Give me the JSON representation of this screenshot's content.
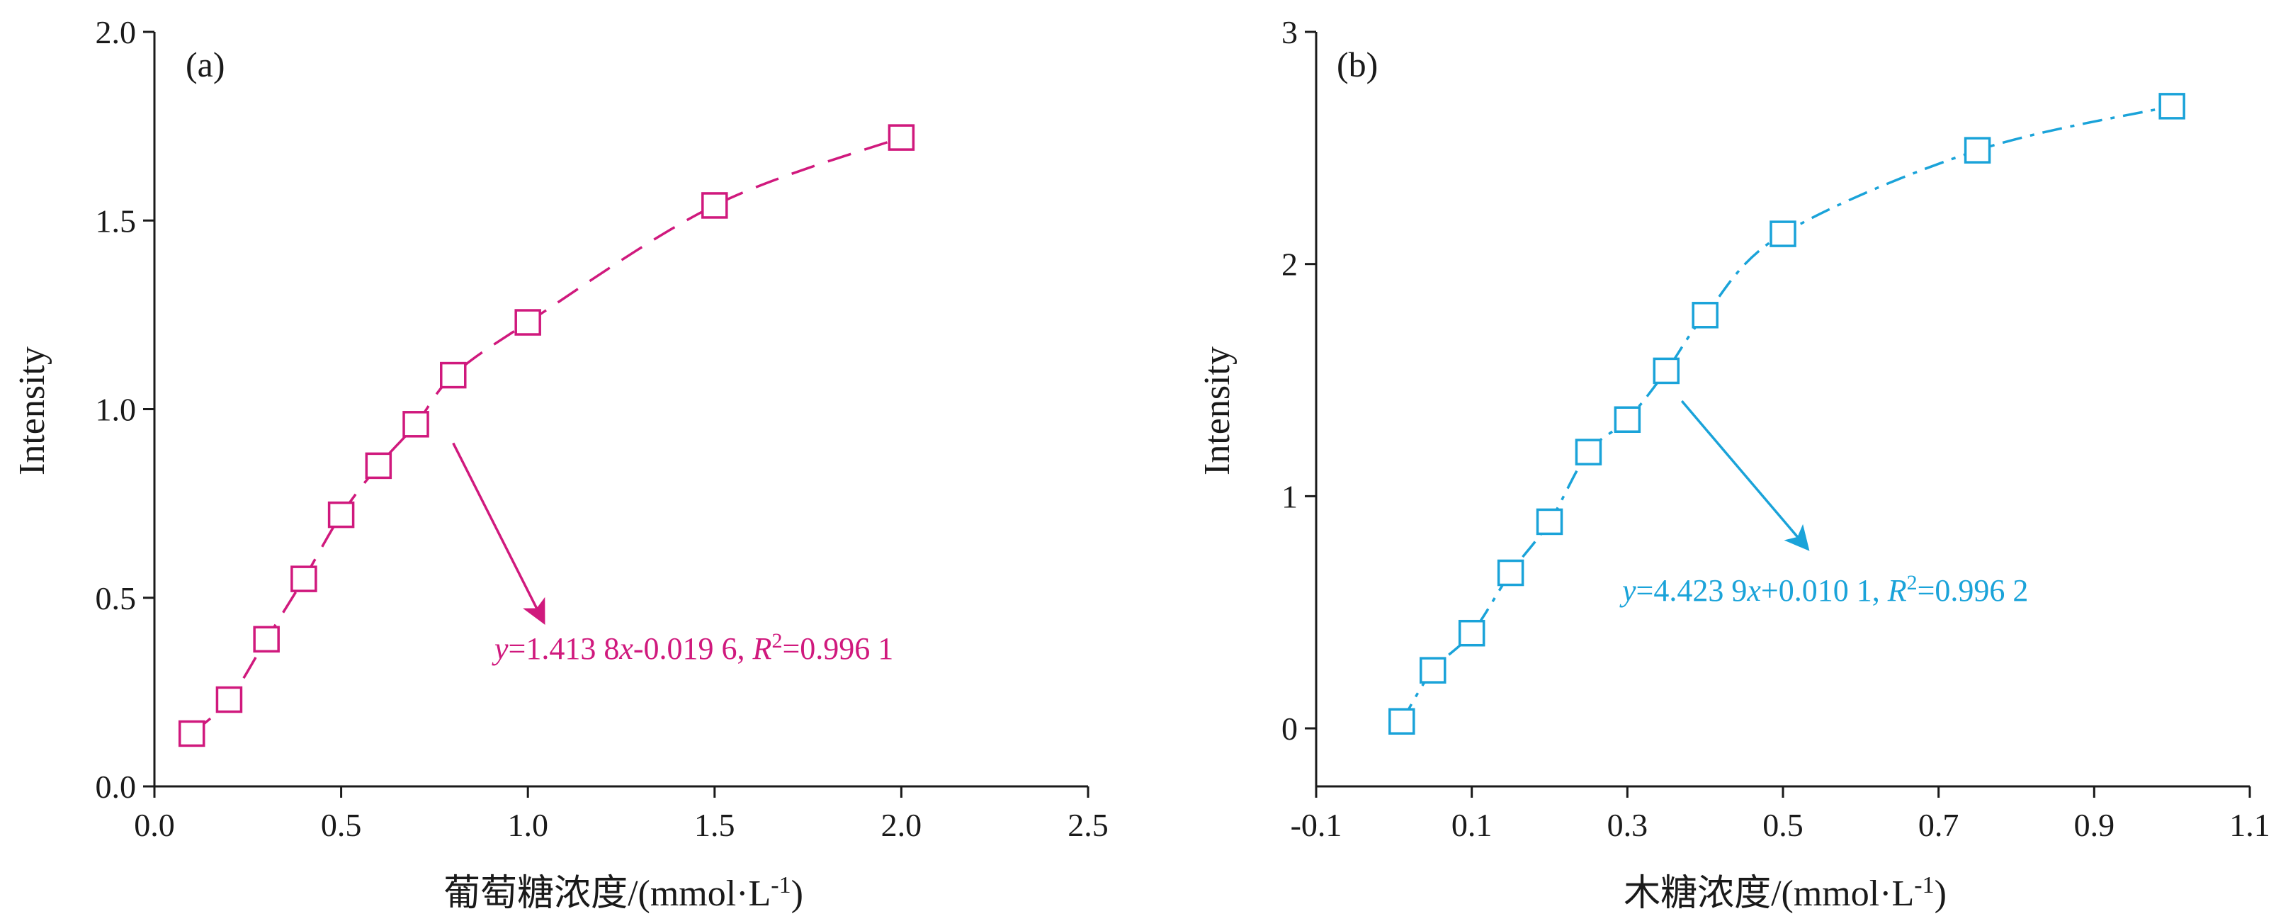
{
  "chart_data": [
    {
      "type": "line",
      "panel_label": "(a)",
      "xlabel": "葡萄糖浓度/(mmol·L",
      "xlabel_sup": "-1",
      "xlabel_close": ")",
      "ylabel": "Intensity",
      "xlim": [
        0.0,
        2.5
      ],
      "ylim": [
        0.0,
        2.0
      ],
      "xticks": [
        "0.0",
        "0.5",
        "1.0",
        "1.5",
        "2.0",
        "2.5"
      ],
      "xtick_values": [
        0.0,
        0.5,
        1.0,
        1.5,
        2.0,
        2.5
      ],
      "yticks": [
        "0.0",
        "0.5",
        "1.0",
        "1.5",
        "2.0"
      ],
      "ytick_values": [
        0.0,
        0.5,
        1.0,
        1.5,
        2.0
      ],
      "color": "#d0197d",
      "marker": "square-open",
      "grid": false,
      "series": [
        {
          "x": [
            0.1,
            0.2,
            0.3,
            0.4,
            0.5,
            0.6,
            0.7,
            0.8,
            1.0,
            1.5,
            2.0
          ],
          "values": [
            0.14,
            0.23,
            0.39,
            0.55,
            0.72,
            0.85,
            0.96,
            1.09,
            1.23,
            1.54,
            1.72
          ]
        }
      ],
      "annotation": {
        "y_var": "y",
        "part1": "=1.413 8",
        "x_var": "x",
        "part2": "-0.019 6, ",
        "r_var": "R",
        "r_sup": "2",
        "part3": "=0.996 1",
        "arrow_from": [
          0.8,
          0.91
        ],
        "arrow_to": [
          1.04,
          0.44
        ]
      }
    },
    {
      "type": "line",
      "panel_label": "(b)",
      "xlabel": "木糖浓度/(mmol·L",
      "xlabel_sup": "-1",
      "xlabel_close": ")",
      "ylabel": "Intensity",
      "xlim": [
        -0.1,
        1.1
      ],
      "ylim": [
        -0.25,
        3.0
      ],
      "xticks": [
        "-0.1",
        "0.1",
        "0.3",
        "0.5",
        "0.7",
        "0.9",
        "1.1"
      ],
      "xtick_values": [
        -0.1,
        0.1,
        0.3,
        0.5,
        0.7,
        0.9,
        1.1
      ],
      "yticks": [
        "0",
        "1",
        "2",
        "3"
      ],
      "ytick_values": [
        0,
        1,
        2,
        3
      ],
      "color": "#1aa3d9",
      "marker": "square-open",
      "grid": false,
      "series": [
        {
          "x": [
            0.01,
            0.05,
            0.1,
            0.15,
            0.2,
            0.25,
            0.3,
            0.35,
            0.4,
            0.5,
            0.75,
            1.0
          ],
          "values": [
            0.03,
            0.25,
            0.41,
            0.67,
            0.89,
            1.19,
            1.33,
            1.54,
            1.78,
            2.13,
            2.49,
            2.68
          ]
        }
      ],
      "annotation": {
        "y_var": "y",
        "part1": "=4.423 9",
        "x_var": "x",
        "part2": "+0.010 1, ",
        "r_var": "R",
        "r_sup": "2",
        "part3": "=0.996 2",
        "arrow_from": [
          0.37,
          1.41
        ],
        "arrow_to": [
          0.53,
          0.78
        ]
      }
    }
  ]
}
